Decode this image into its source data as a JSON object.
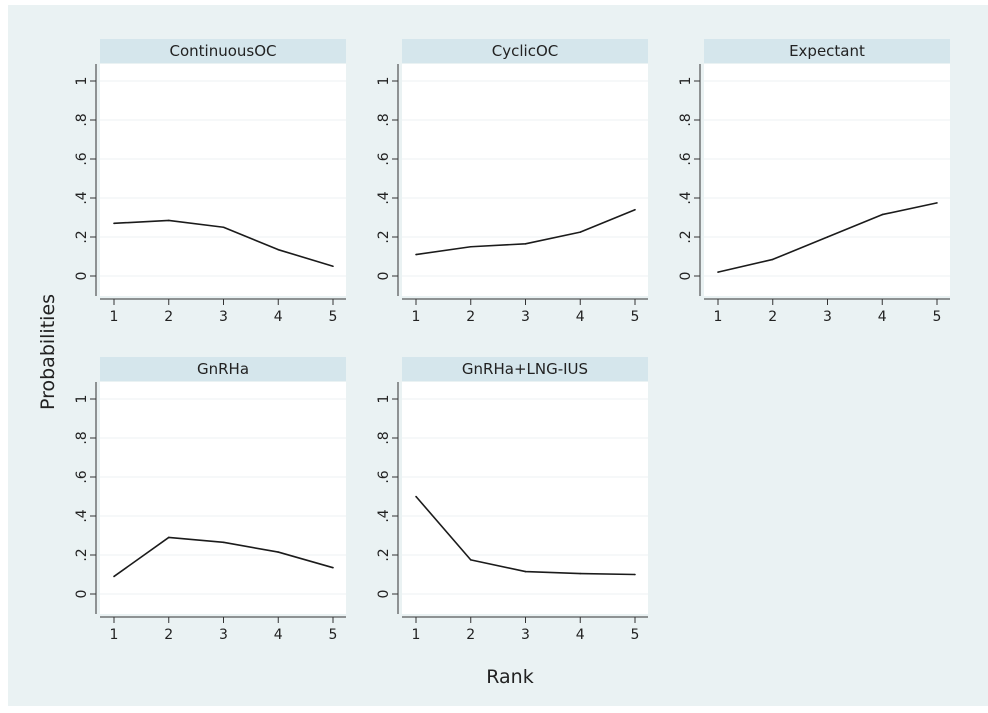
{
  "figure": {
    "ylabel": "Probabilities",
    "xlabel": "Rank",
    "background_color": "#eaf2f3",
    "panel_header_color": "#d5e6ec",
    "grid_color": "#eef2f3",
    "line_color": "#1b1b1b"
  },
  "chart_data": [
    {
      "type": "line",
      "title": "ContinuousOC",
      "x": [
        1,
        2,
        3,
        4,
        5
      ],
      "values": [
        0.27,
        0.285,
        0.25,
        0.135,
        0.05
      ],
      "xlim": [
        1,
        5
      ],
      "ylim": [
        0,
        1
      ],
      "xticks": [
        "1",
        "2",
        "3",
        "4",
        "5"
      ],
      "yticks": [
        "0",
        ".2",
        ".4",
        ".6",
        ".8",
        "1"
      ],
      "grid": true
    },
    {
      "type": "line",
      "title": "CyclicOC",
      "x": [
        1,
        2,
        3,
        4,
        5
      ],
      "values": [
        0.11,
        0.15,
        0.165,
        0.225,
        0.34
      ],
      "xlim": [
        1,
        5
      ],
      "ylim": [
        0,
        1
      ],
      "xticks": [
        "1",
        "2",
        "3",
        "4",
        "5"
      ],
      "yticks": [
        "0",
        ".2",
        ".4",
        ".6",
        ".8",
        "1"
      ],
      "grid": true
    },
    {
      "type": "line",
      "title": "Expectant",
      "x": [
        1,
        2,
        3,
        4,
        5
      ],
      "values": [
        0.02,
        0.085,
        0.2,
        0.315,
        0.375
      ],
      "xlim": [
        1,
        5
      ],
      "ylim": [
        0,
        1
      ],
      "xticks": [
        "1",
        "2",
        "3",
        "4",
        "5"
      ],
      "yticks": [
        "0",
        ".2",
        ".4",
        ".6",
        ".8",
        "1"
      ],
      "grid": true
    },
    {
      "type": "line",
      "title": "GnRHa",
      "x": [
        1,
        2,
        3,
        4,
        5
      ],
      "values": [
        0.09,
        0.29,
        0.265,
        0.215,
        0.135
      ],
      "xlim": [
        1,
        5
      ],
      "ylim": [
        0,
        1
      ],
      "xticks": [
        "1",
        "2",
        "3",
        "4",
        "5"
      ],
      "yticks": [
        "0",
        ".2",
        ".4",
        ".6",
        ".8",
        "1"
      ],
      "grid": true
    },
    {
      "type": "line",
      "title": "GnRHa+LNG-IUS",
      "x": [
        1,
        2,
        3,
        4,
        5
      ],
      "values": [
        0.5,
        0.175,
        0.115,
        0.105,
        0.1
      ],
      "xlim": [
        1,
        5
      ],
      "ylim": [
        0,
        1
      ],
      "xticks": [
        "1",
        "2",
        "3",
        "4",
        "5"
      ],
      "yticks": [
        "0",
        ".2",
        ".4",
        ".6",
        ".8",
        "1"
      ],
      "grid": true
    }
  ]
}
